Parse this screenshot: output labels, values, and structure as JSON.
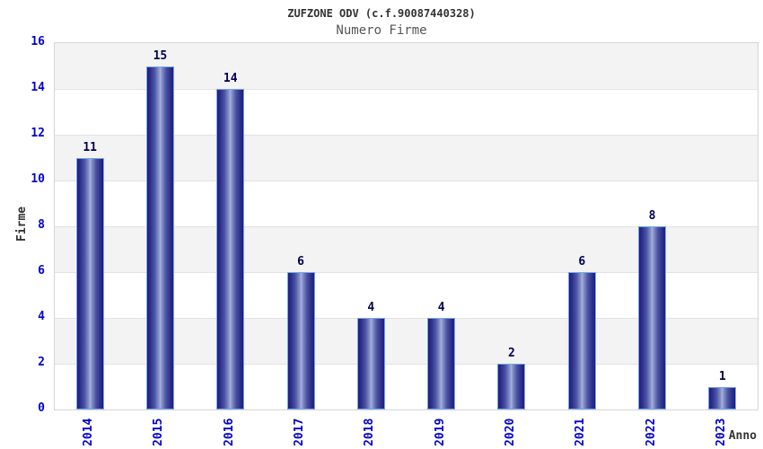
{
  "chart_data": {
    "type": "bar",
    "title": "ZUFZONE ODV (c.f.90087440328)",
    "subtitle": "Numero Firme",
    "xlabel": "Anno",
    "ylabel": "Firme",
    "categories": [
      "2014",
      "2015",
      "2016",
      "2017",
      "2018",
      "2019",
      "2020",
      "2021",
      "2022",
      "2023"
    ],
    "values": [
      11,
      15,
      14,
      6,
      4,
      4,
      2,
      6,
      8,
      1
    ],
    "ylim": [
      0,
      16
    ],
    "y_tick_step": 2,
    "y_tick_labels": [
      "0",
      "2",
      "4",
      "6",
      "8",
      "10",
      "12",
      "14",
      "16"
    ],
    "grid": true,
    "legend": "none",
    "band_fill": "alternating horizontal gray/white bands every 2 units",
    "colors": {
      "bar_dark": "#1e1e7e",
      "bar_highlight": "#aab4de",
      "bar_border": "#74a7ea",
      "axis_tick_label": "#0000cd",
      "bar_value_label": "#00004d",
      "title": "#333333",
      "subtitle": "#555555",
      "axis_title": "#333333",
      "band_gray": "#f3f3f3",
      "gridline": "#e2e2e2",
      "plot_border": "#d5d5d5",
      "background": "#ffffff"
    }
  }
}
